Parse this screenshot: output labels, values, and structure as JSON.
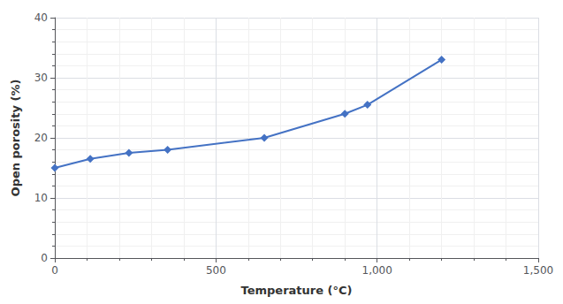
{
  "chart_data": {
    "type": "line",
    "xlabel": "Temperature (°C)",
    "ylabel": "Open porosity (%)",
    "x": [
      0,
      110,
      230,
      350,
      650,
      900,
      970,
      1200
    ],
    "values": [
      15,
      16.5,
      17.5,
      18,
      20,
      24,
      25.5,
      33
    ],
    "color": "#4472C4",
    "marker": "diamond",
    "xlim": [
      0,
      1500
    ],
    "xticks": [
      0,
      500,
      1000,
      1500
    ],
    "ylim": [
      0,
      40
    ],
    "yticks": [
      0,
      10,
      20,
      30,
      40
    ],
    "grid": true
  }
}
